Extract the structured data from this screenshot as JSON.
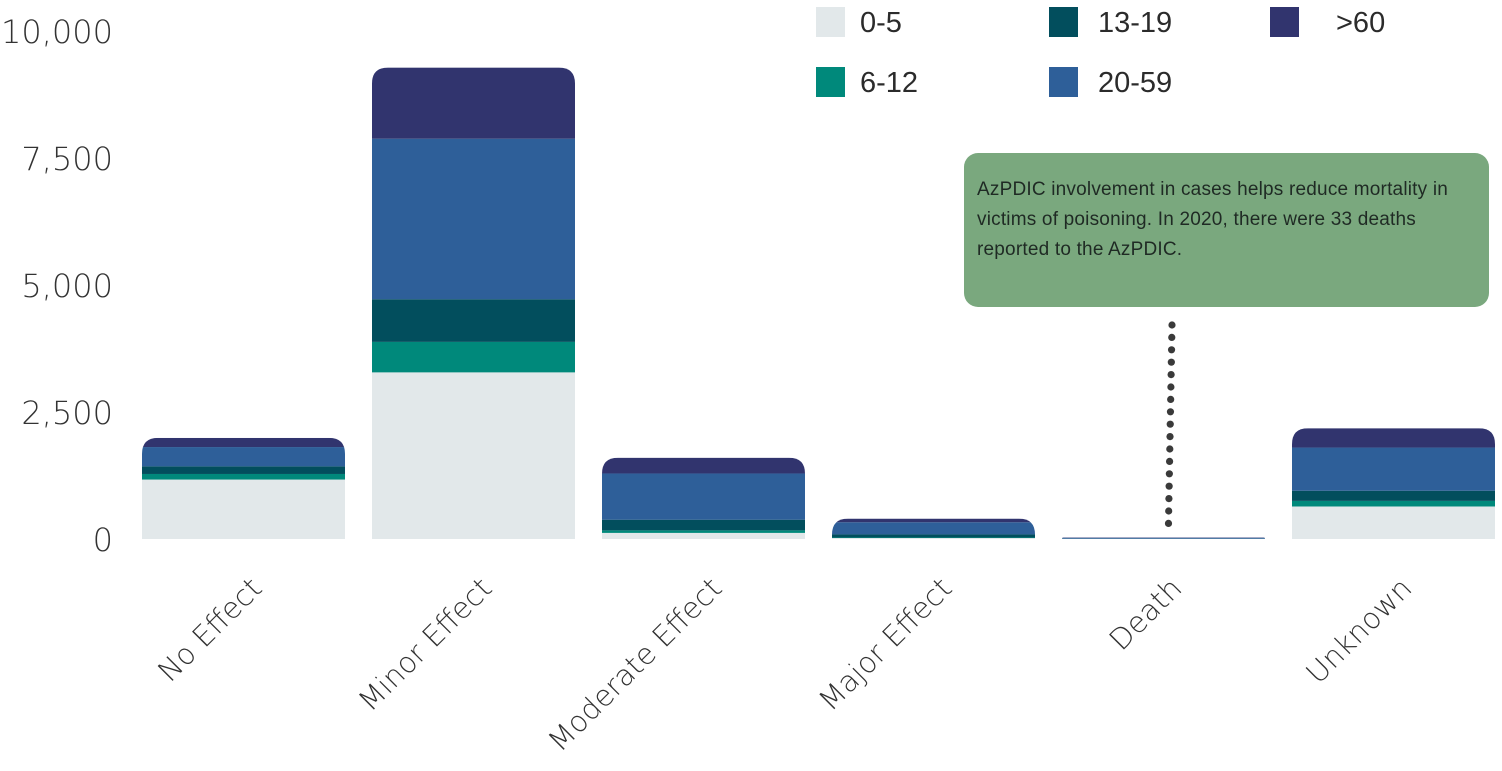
{
  "chart_data": {
    "type": "bar",
    "stacked": true,
    "categories": [
      "No Effect",
      "Minor Effect",
      "Moderate Effect",
      "Major Effect",
      "Death",
      "Unknown"
    ],
    "series": [
      {
        "name": "0-5",
        "color": "#e2e8ea",
        "values": [
          1170,
          3280,
          120,
          20,
          2,
          640
        ]
      },
      {
        "name": "6-12",
        "color": "#00897b",
        "values": [
          110,
          600,
          50,
          10,
          1,
          110
        ]
      },
      {
        "name": "13-19",
        "color": "#024e5d",
        "values": [
          150,
          840,
          210,
          60,
          3,
          200
        ]
      },
      {
        "name": "20-59",
        "color": "#2e5f99",
        "values": [
          380,
          3160,
          910,
          240,
          18,
          850
        ]
      },
      {
        "name": ">60",
        "color": "#31346e",
        "values": [
          180,
          1400,
          310,
          70,
          9,
          380
        ]
      }
    ],
    "ylim": [
      0,
      10000
    ],
    "yticks": [
      0,
      2500,
      5000,
      7500,
      10000
    ],
    "ytick_labels": [
      "0",
      "2,500",
      "5,000",
      "7,500",
      "10,000"
    ],
    "grid": false,
    "legend_position": "top-right",
    "annotation": "AzPDIC involvement in cases helps reduce mortality in victims of poisoning. In 2020, there were 33 deaths reported to the AzPDIC."
  }
}
